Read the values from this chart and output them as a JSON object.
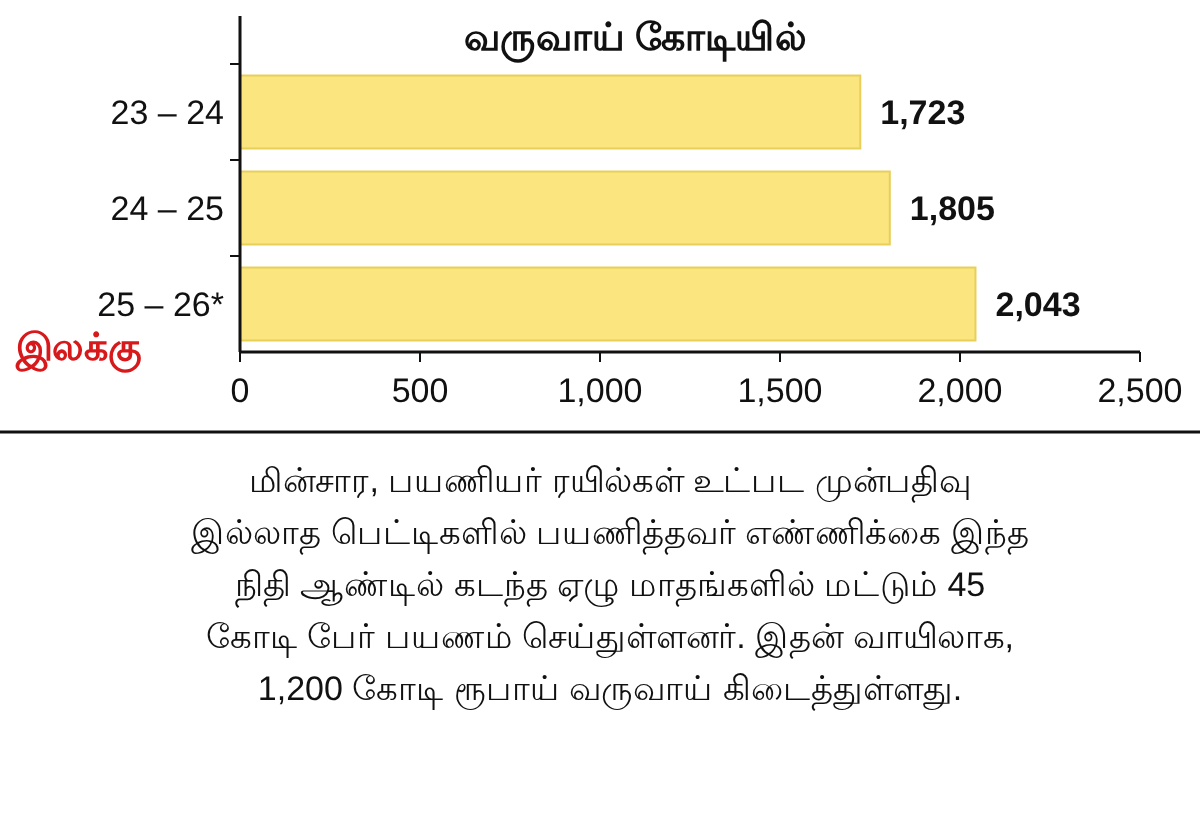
{
  "chart_data": {
    "type": "bar",
    "orientation": "horizontal",
    "title": "வருவாய் கோடியில்",
    "categories": [
      "23 – 24",
      "24 – 25",
      "25 – 26*"
    ],
    "values": [
      1723,
      1805,
      2043
    ],
    "color": "#fbe57f",
    "value_labels": [
      "1,723",
      "1,805",
      "2,043"
    ],
    "xlim": [
      0,
      2500
    ],
    "xticks": [
      0,
      500,
      {
        "value": 1000,
        "label": "1,000"
      },
      {
        "value": 1500,
        "label": "1,500"
      },
      {
        "value": 2000,
        "label": "2,000"
      },
      {
        "value": 2500,
        "label": "2,500"
      }
    ],
    "grid": false,
    "annotations": [
      "இலக்கு",
      "மின்சார, பயணியர் ரயில்கள் உட்பட முன்பதிவு இல்லாத பெட்டிகளில் பயணித்தவர் எண்ணிக்கை இந்த நிதி ஆண்டில் கடந்த ஏழு மாதங்களில் மட்டும் 45 கோடி பேர் பயணம் செய்துள்ளனர். இதன் வாயிலாக, 1,200 கோடி ரூபாய் வருவாய் கிடைத்துள்ளது."
    ]
  }
}
